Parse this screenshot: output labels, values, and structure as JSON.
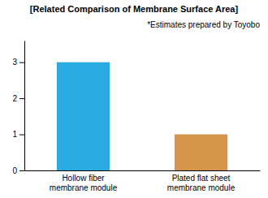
{
  "chart_data": {
    "type": "bar",
    "title": "[Related Comparison of Membrane Surface Area]",
    "subtitle": "*Estimates prepared by Toyobo",
    "categories": [
      "Hollow fiber\nmembrane module",
      "Plated flat sheet\nmembrane module"
    ],
    "values": [
      3.0,
      1.0
    ],
    "colors": [
      "#29aae1",
      "#d4954a"
    ],
    "ylim": [
      0,
      3.6
    ],
    "yticks": [
      0,
      1,
      2,
      3
    ],
    "grid": false
  }
}
